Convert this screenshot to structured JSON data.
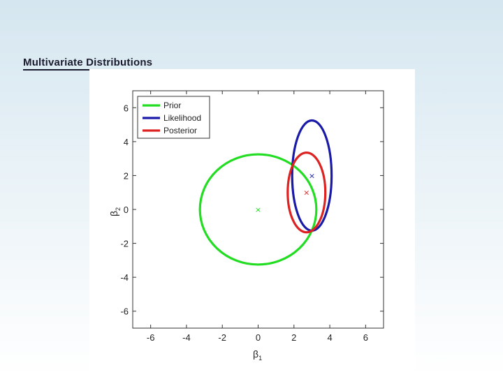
{
  "slide": {
    "title": "Multivariate Distributions"
  },
  "chart_data": {
    "type": "scatter",
    "title": "",
    "xlabel": "β",
    "xlabel_sub": "1",
    "ylabel": "β",
    "ylabel_sub": "2",
    "xlim": [
      -7,
      7
    ],
    "ylim": [
      -7,
      7
    ],
    "xticks": [
      -6,
      -4,
      -2,
      0,
      2,
      4,
      6
    ],
    "yticks": [
      -6,
      -4,
      -2,
      0,
      2,
      4,
      6
    ],
    "grid": false,
    "legend_position": "top-left",
    "series": [
      {
        "name": "Prior",
        "color": "#22dd22",
        "shape": "ellipse",
        "center": [
          0,
          0
        ],
        "semi_axis_x": 3.25,
        "semi_axis_y": 3.25
      },
      {
        "name": "Likelihood",
        "color": "#1a1aa8",
        "shape": "ellipse",
        "center": [
          3,
          2
        ],
        "semi_axis_x": 1.1,
        "semi_axis_y": 3.25
      },
      {
        "name": "Posterior",
        "color": "#dd2222",
        "shape": "ellipse",
        "center": [
          2.7,
          1
        ],
        "semi_axis_x": 1.05,
        "semi_axis_y": 2.35
      }
    ],
    "markers": [
      {
        "x": 0,
        "y": 0,
        "symbol": "×",
        "color": "#22dd22"
      },
      {
        "x": 3,
        "y": 2,
        "symbol": "×",
        "color": "#1a1aa8"
      },
      {
        "x": 2.7,
        "y": 1,
        "symbol": "×",
        "color": "#dd2222"
      }
    ]
  }
}
